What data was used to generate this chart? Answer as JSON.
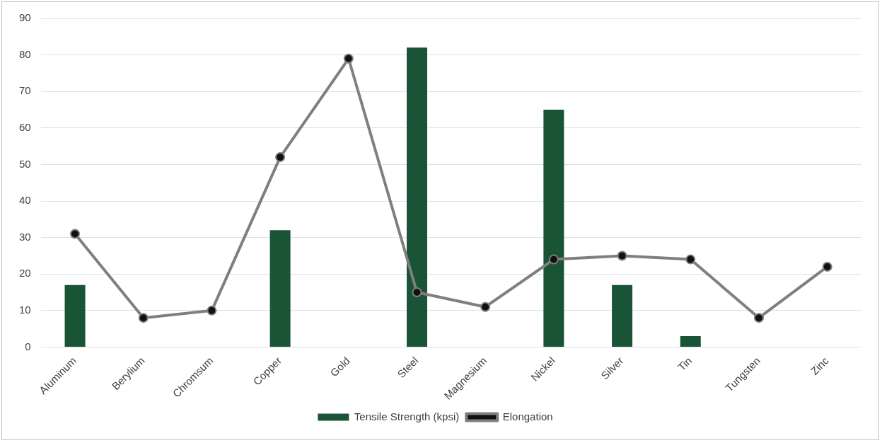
{
  "chart_data": {
    "type": "bar",
    "categories": [
      "Aluminum",
      "Berylium",
      "Chromsum",
      "Copper",
      "Gold",
      "Steel",
      "Magnesium",
      "Nickel",
      "Silver",
      "Tin",
      "Tungsten",
      "Zinc"
    ],
    "series": [
      {
        "name": "Tensile Strength (kpsi)",
        "color": "#1a5436",
        "values": [
          17,
          null,
          null,
          32,
          null,
          82,
          null,
          65,
          17,
          3,
          null,
          null
        ]
      },
      {
        "name": "Elongation",
        "type": "line",
        "color": "#7f7f7f",
        "values": [
          31,
          8,
          10,
          52,
          79,
          15,
          11,
          24,
          25,
          24,
          8,
          22
        ]
      }
    ],
    "ylim": [
      0,
      90
    ],
    "yticks": [
      0,
      10,
      20,
      30,
      40,
      50,
      60,
      70,
      80,
      90
    ],
    "grid": "y",
    "legend": "bottom",
    "marker": "circle",
    "line_style": "solid"
  }
}
